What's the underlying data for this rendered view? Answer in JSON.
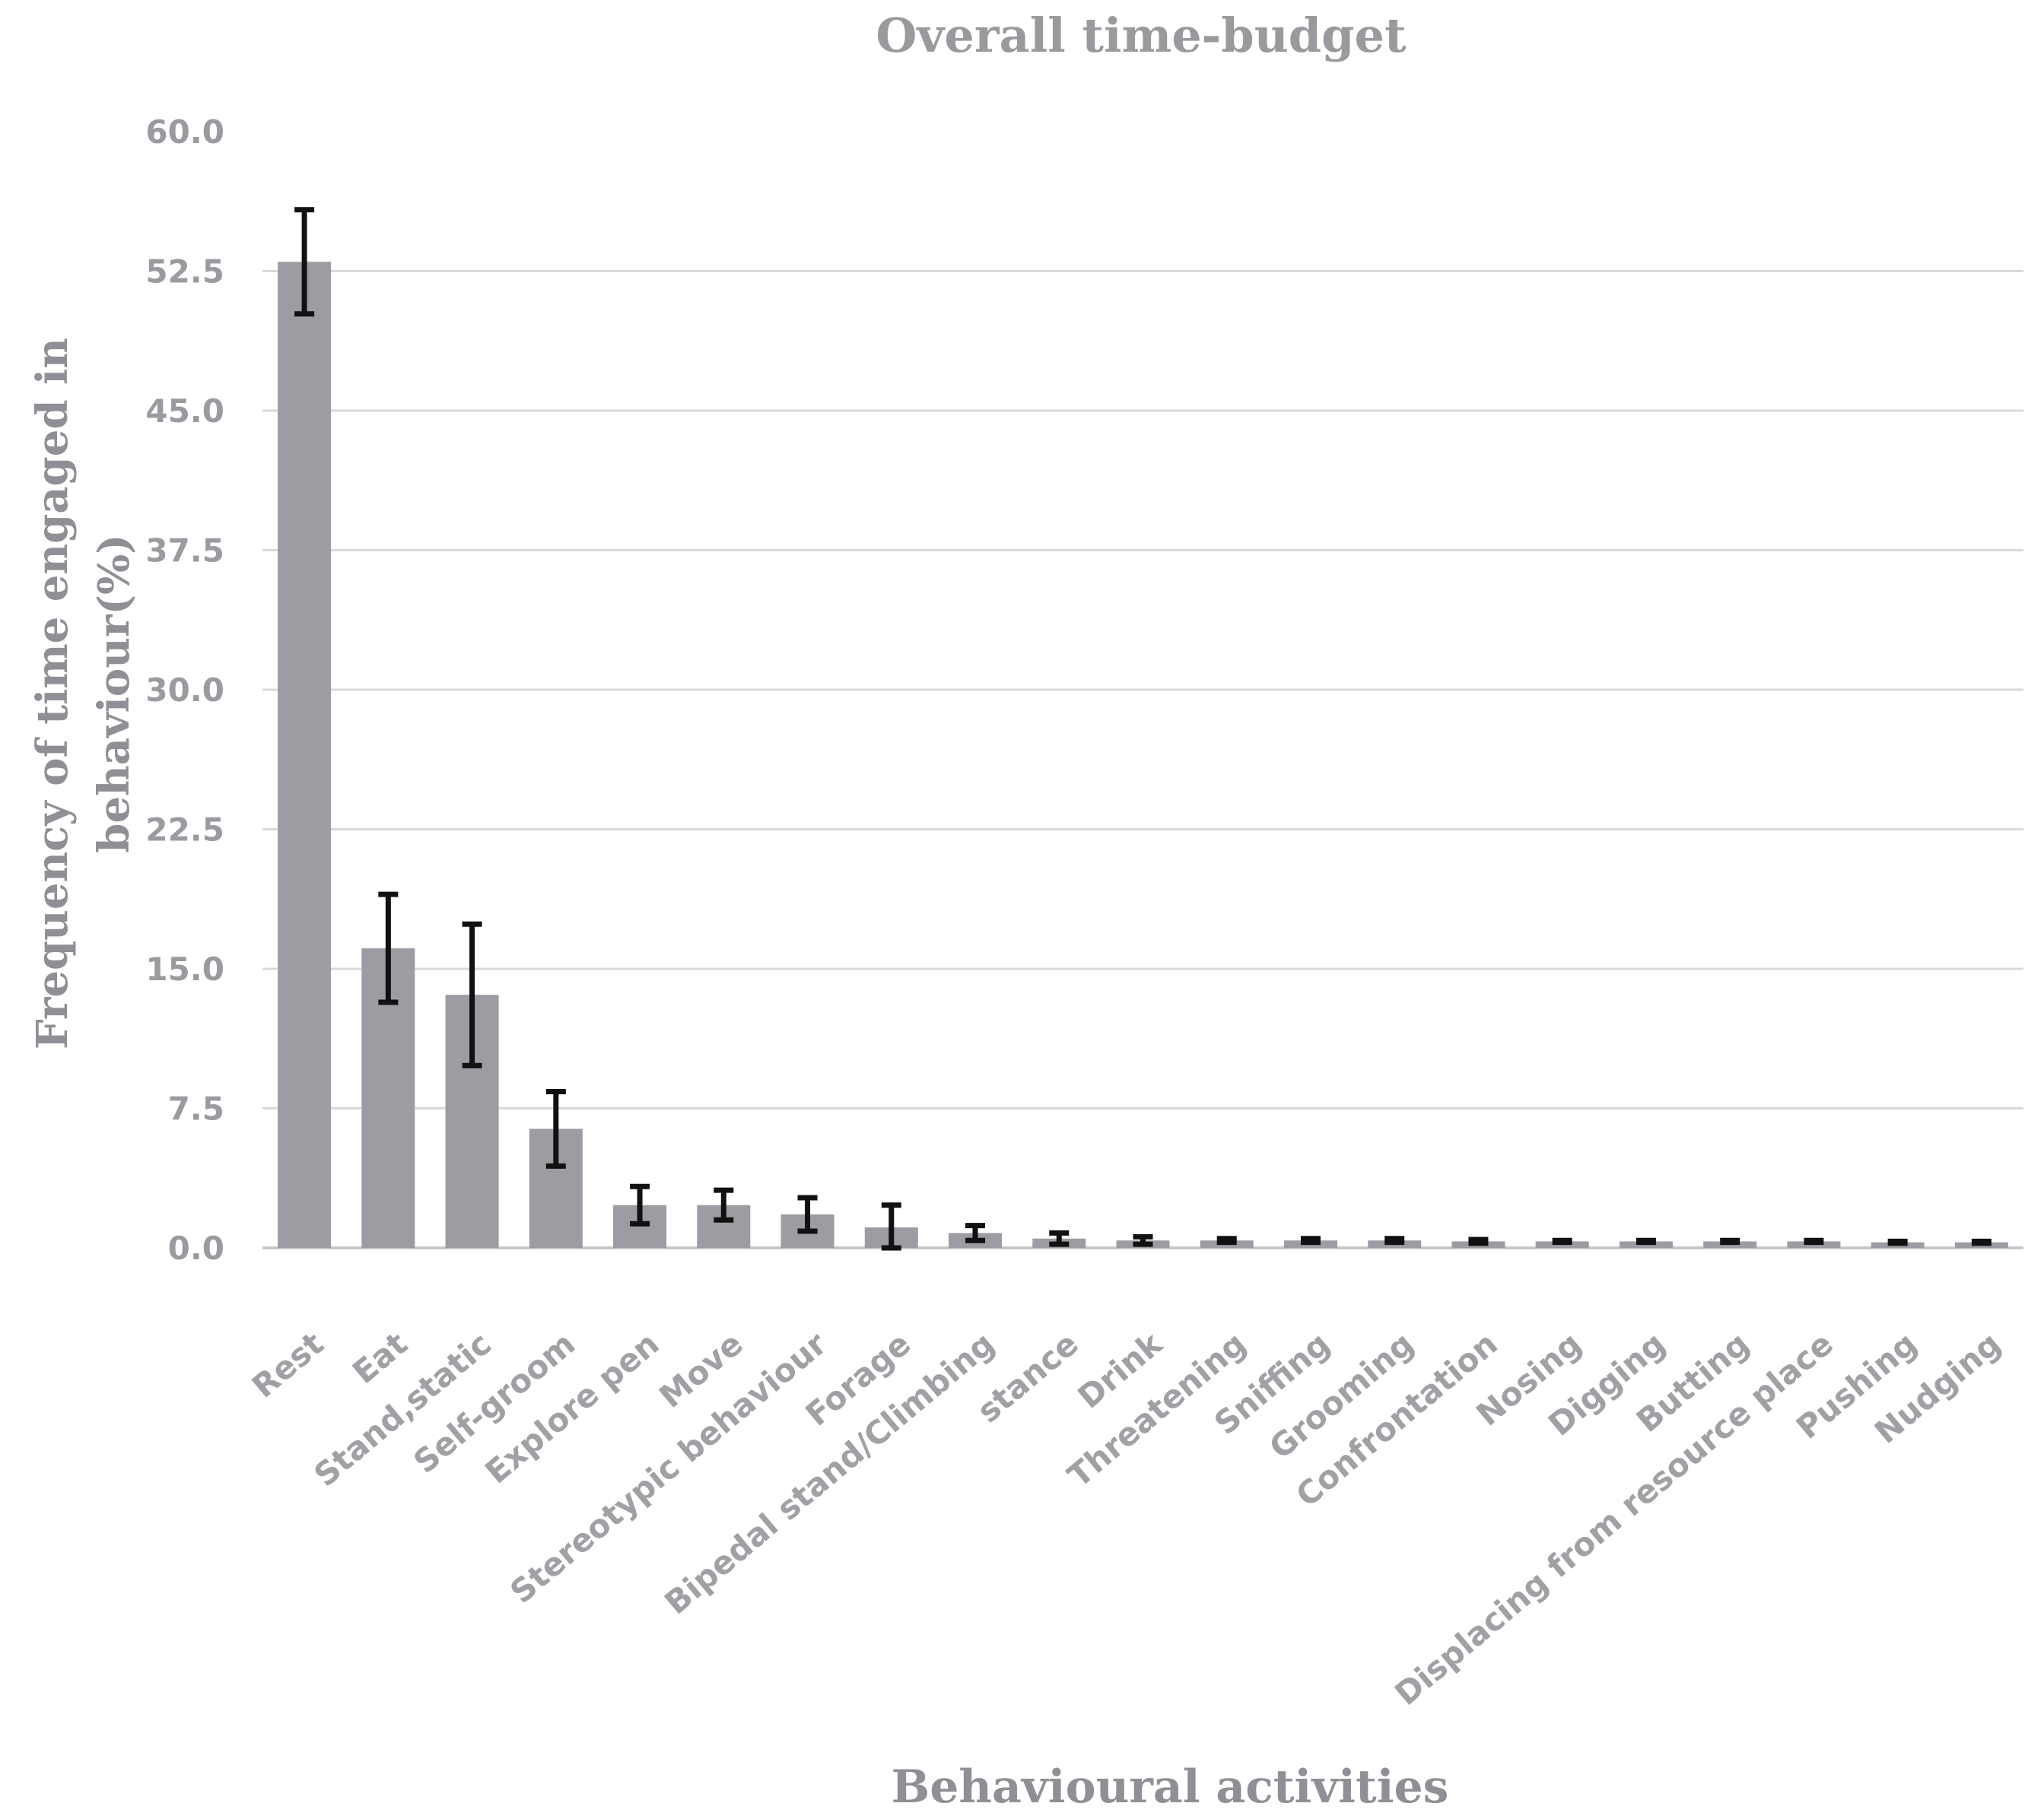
{
  "chart_data": {
    "type": "bar",
    "title": "Overall time-budget",
    "xlabel": "Behavioural activities",
    "ylabel_lines": [
      "Frequency of time engaged in",
      "behaviour(%)"
    ],
    "ylim": [
      0,
      60
    ],
    "yticks": [
      "0.0",
      "7.5",
      "15.0",
      "22.5",
      "30.0",
      "37.5",
      "45.0",
      "52.5",
      "60.0"
    ],
    "grid": true,
    "categories": [
      "Rest",
      "Eat",
      "Stand,static",
      "Self-groom",
      "Explore pen",
      "Move",
      "Stereotypic behaviour",
      "Forage",
      "Bipedal stand/Climbing",
      "stance",
      "Drink",
      "Threatening",
      "Sniffing",
      "Grooming",
      "Confrontation",
      "Nosing",
      "Digging",
      "Butting",
      "Displacing from resource place",
      "Pushing",
      "Nudging"
    ],
    "values": [
      53.0,
      16.1,
      13.6,
      6.4,
      2.3,
      2.3,
      1.8,
      1.1,
      0.8,
      0.5,
      0.4,
      0.4,
      0.4,
      0.4,
      0.35,
      0.35,
      0.35,
      0.35,
      0.35,
      0.3,
      0.3
    ],
    "error": [
      2.8,
      2.9,
      3.8,
      2.0,
      1.0,
      0.8,
      0.9,
      1.2,
      0.4,
      0.3,
      0.2,
      0.1,
      0.1,
      0.1,
      0.1,
      0.05,
      0.05,
      0.05,
      0.05,
      0.05,
      0.05
    ],
    "bar_color": "#9c9ca3",
    "error_color": "#111111"
  }
}
